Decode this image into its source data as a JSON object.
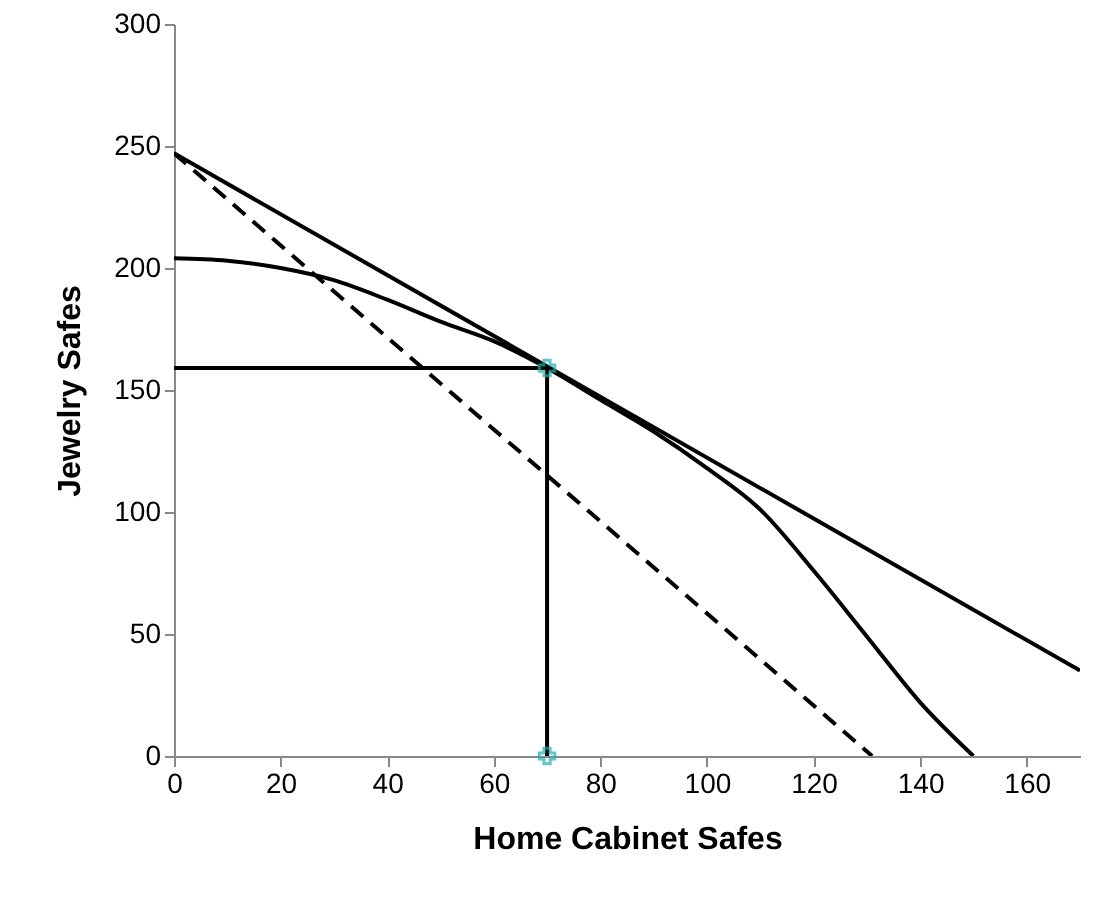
{
  "chart_data": {
    "type": "line",
    "xlabel": "Home Cabinet Safes",
    "ylabel": "Jewelry Safes",
    "xlim": [
      0,
      170
    ],
    "ylim": [
      0,
      300
    ],
    "xticks": [
      0,
      20,
      40,
      60,
      80,
      100,
      120,
      140,
      160
    ],
    "yticks": [
      0,
      50,
      100,
      150,
      200,
      250,
      300
    ],
    "series": [
      {
        "color": "#000000",
        "line_style": "solid",
        "x": [
          0,
          170
        ],
        "values": [
          247,
          35
        ]
      },
      {
        "color": "#000000",
        "line_style": "dashed",
        "x": [
          0,
          131
        ],
        "values": [
          247,
          0
        ]
      },
      {
        "color": "#000000",
        "line_style": "solid",
        "x": [
          0,
          10,
          20,
          30,
          40,
          50,
          60,
          70,
          80,
          90,
          100,
          110,
          120,
          130,
          140,
          150
        ],
        "values": [
          204,
          203,
          200,
          195,
          187,
          178,
          170,
          159,
          146,
          133,
          118,
          101,
          76,
          49,
          22,
          0
        ]
      },
      {
        "color": "#000000",
        "line_style": "solid",
        "x": [
          0,
          70
        ],
        "values": [
          159,
          159
        ]
      },
      {
        "color": "#000000",
        "line_style": "solid",
        "x": [
          70,
          70
        ],
        "values": [
          0,
          159
        ]
      },
      {
        "type": "scatter",
        "color": "#20b0b0",
        "marker": "cross",
        "x": [
          70,
          70
        ],
        "values": [
          159,
          0
        ]
      }
    ]
  }
}
